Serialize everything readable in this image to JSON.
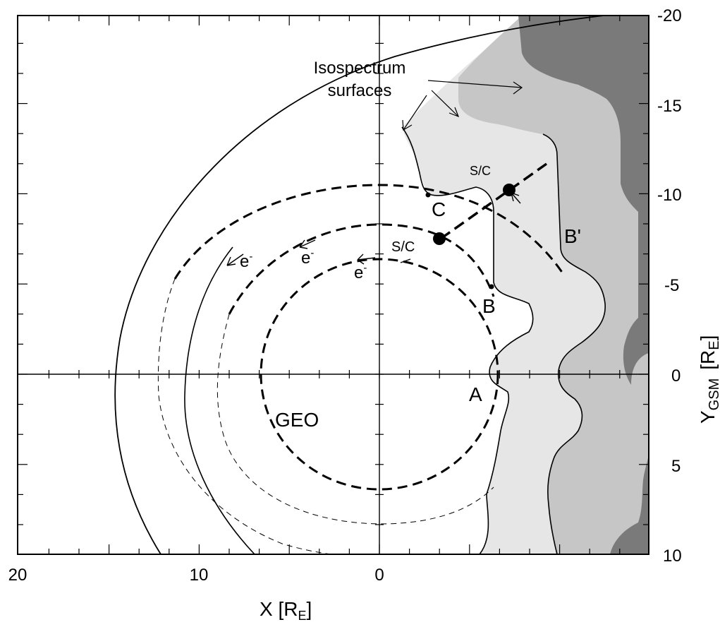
{
  "chart_data": {
    "type": "diagram",
    "x_axis": {
      "title": "X [R",
      "title_sub": "E",
      "title_end": "]",
      "ticks": [
        {
          "value": 20,
          "label": "20"
        },
        {
          "value": 10,
          "label": "10"
        },
        {
          "value": 0,
          "label": "0"
        }
      ],
      "range": [
        20,
        -15
      ]
    },
    "y_axis": {
      "title": "Y",
      "title_sub": "GSM",
      "title_rest": "[R",
      "title_sub2": "E",
      "title_end": "]",
      "ticks": [
        {
          "value": -20,
          "label": "-20"
        },
        {
          "value": -15,
          "label": "-15"
        },
        {
          "value": -10,
          "label": "-10"
        },
        {
          "value": -5,
          "label": "-5"
        },
        {
          "value": 0,
          "label": "0"
        },
        {
          "value": 5,
          "label": "5"
        },
        {
          "value": 10,
          "label": "10"
        }
      ],
      "range": [
        -20,
        10
      ]
    },
    "annotations": {
      "isospectrum_line1": "Isospectrum",
      "isospectrum_line2": "surfaces",
      "geo": "GEO",
      "sc_upper": "S/C",
      "sc_lower": "S/C",
      "label_a": "A",
      "label_b": "B",
      "label_c": "C",
      "label_b_prime": "B'",
      "electron": "e",
      "electron_sup": "-"
    },
    "drift_circles_radii_re": [
      6.6,
      8.5,
      10.5
    ],
    "spacecraft_positions": [
      {
        "x": -3.5,
        "y": -7.5
      },
      {
        "x": -7.2,
        "y": -10.3
      }
    ],
    "shading_levels": [
      "#e6e6e6",
      "#c6c6c6",
      "#7a7a7a"
    ]
  }
}
